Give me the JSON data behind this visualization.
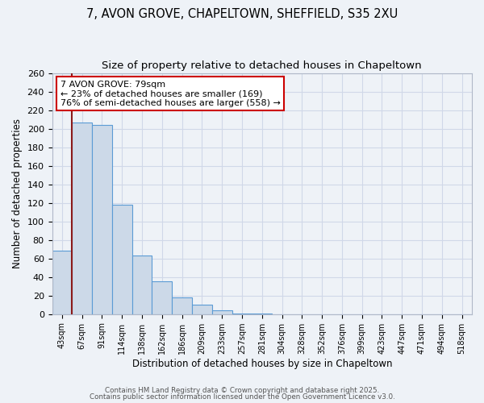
{
  "title": "7, AVON GROVE, CHAPELTOWN, SHEFFIELD, S35 2XU",
  "subtitle": "Size of property relative to detached houses in Chapeltown",
  "xlabel": "Distribution of detached houses by size in Chapeltown",
  "ylabel": "Number of detached properties",
  "bar_color": "#ccd9e8",
  "bar_edge_color": "#5b9bd5",
  "categories": [
    "43sqm",
    "67sqm",
    "91sqm",
    "114sqm",
    "138sqm",
    "162sqm",
    "186sqm",
    "209sqm",
    "233sqm",
    "257sqm",
    "281sqm",
    "304sqm",
    "328sqm",
    "352sqm",
    "376sqm",
    "399sqm",
    "423sqm",
    "447sqm",
    "471sqm",
    "494sqm",
    "518sqm"
  ],
  "values": [
    68,
    207,
    204,
    118,
    63,
    35,
    18,
    10,
    4,
    1,
    1,
    0,
    0,
    0,
    0,
    0,
    0,
    0,
    0,
    0,
    0
  ],
  "ylim": [
    0,
    260
  ],
  "yticks": [
    0,
    20,
    40,
    60,
    80,
    100,
    120,
    140,
    160,
    180,
    200,
    220,
    240,
    260
  ],
  "property_line_x": 0.5,
  "annotation_title": "7 AVON GROVE: 79sqm",
  "annotation_line1": "← 23% of detached houses are smaller (169)",
  "annotation_line2": "76% of semi-detached houses are larger (558) →",
  "footer1": "Contains HM Land Registry data © Crown copyright and database right 2025.",
  "footer2": "Contains public sector information licensed under the Open Government Licence v3.0.",
  "background_color": "#eef2f7",
  "grid_color": "#d0d8e8",
  "title_fontsize": 10.5,
  "subtitle_fontsize": 9.5
}
